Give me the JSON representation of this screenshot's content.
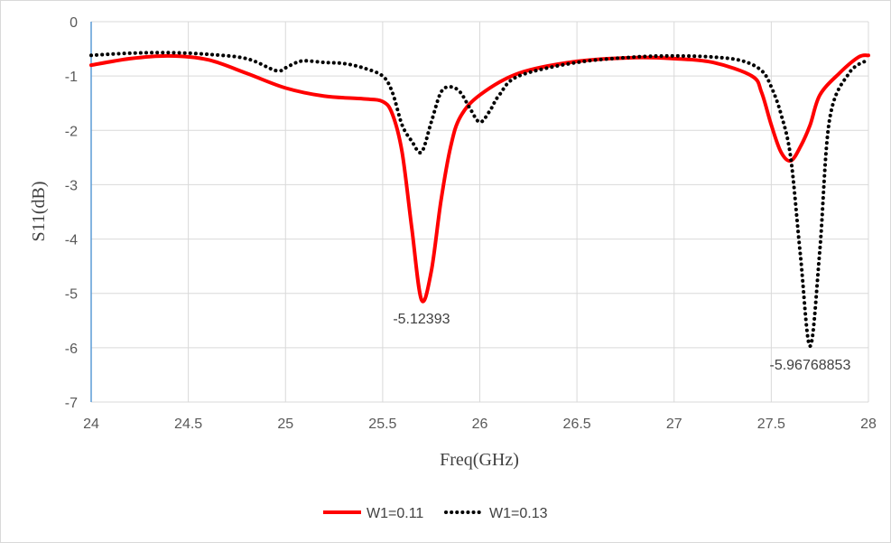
{
  "chart_data": {
    "type": "line",
    "xlabel": "Freq(GHz)",
    "ylabel": "S11(dB)",
    "xlim": [
      24,
      28
    ],
    "ylim": [
      -7,
      0
    ],
    "x_ticks": [
      "24",
      "24.5",
      "25",
      "25.5",
      "26",
      "26.5",
      "27",
      "27.5",
      "28"
    ],
    "y_ticks": [
      "0",
      "-1",
      "-2",
      "-3",
      "-4",
      "-5",
      "-6",
      "-7"
    ],
    "grid": true,
    "legend_position": "bottom",
    "series": [
      {
        "name": "W1=0.11",
        "color": "#ff0000",
        "style": "solid",
        "x": [
          24.0,
          24.2,
          24.4,
          24.6,
          24.8,
          25.0,
          25.2,
          25.4,
          25.5,
          25.55,
          25.6,
          25.65,
          25.7,
          25.75,
          25.8,
          25.85,
          25.9,
          26.0,
          26.2,
          26.5,
          26.8,
          27.0,
          27.2,
          27.4,
          27.45,
          27.5,
          27.55,
          27.6,
          27.65,
          27.7,
          27.75,
          27.85,
          27.95,
          28.0
        ],
        "y": [
          -0.8,
          -0.68,
          -0.63,
          -0.7,
          -0.95,
          -1.22,
          -1.37,
          -1.42,
          -1.47,
          -1.7,
          -2.4,
          -3.8,
          -5.12,
          -4.6,
          -3.3,
          -2.3,
          -1.75,
          -1.35,
          -0.95,
          -0.73,
          -0.66,
          -0.68,
          -0.75,
          -1.0,
          -1.3,
          -1.9,
          -2.4,
          -2.56,
          -2.3,
          -1.9,
          -1.35,
          -0.95,
          -0.65,
          -0.62
        ]
      },
      {
        "name": "W1=0.13",
        "color": "#000000",
        "style": "dotted",
        "x": [
          24.0,
          24.2,
          24.4,
          24.6,
          24.8,
          24.95,
          25.0,
          25.05,
          25.1,
          25.2,
          25.3,
          25.4,
          25.5,
          25.55,
          25.6,
          25.65,
          25.7,
          25.75,
          25.8,
          25.85,
          25.9,
          25.95,
          26.0,
          26.05,
          26.1,
          26.2,
          26.5,
          26.8,
          27.0,
          27.2,
          27.35,
          27.45,
          27.5,
          27.55,
          27.6,
          27.65,
          27.7,
          27.75,
          27.8,
          27.9,
          28.0
        ],
        "y": [
          -0.62,
          -0.58,
          -0.57,
          -0.6,
          -0.68,
          -0.9,
          -0.85,
          -0.76,
          -0.72,
          -0.75,
          -0.77,
          -0.85,
          -1.0,
          -1.3,
          -1.9,
          -2.2,
          -2.4,
          -1.85,
          -1.3,
          -1.2,
          -1.3,
          -1.6,
          -1.85,
          -1.65,
          -1.35,
          -1.0,
          -0.75,
          -0.65,
          -0.63,
          -0.65,
          -0.72,
          -0.9,
          -1.2,
          -1.7,
          -2.5,
          -4.3,
          -5.97,
          -4.2,
          -1.8,
          -0.95,
          -0.7
        ]
      }
    ],
    "annotations": [
      {
        "text": "-5.12393",
        "x": 25.7,
        "y": -5.12393
      },
      {
        "text": "-5.96768853",
        "x": 27.7,
        "y": -5.96768853
      }
    ]
  }
}
